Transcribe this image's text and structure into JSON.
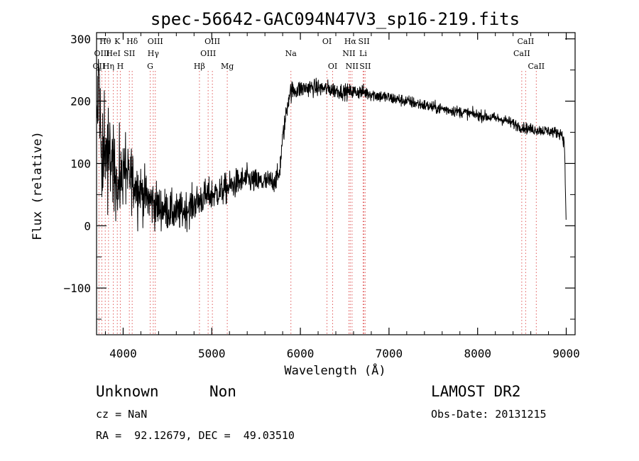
{
  "info": {
    "class_label": "Unknown",
    "subclass_label": "Non",
    "survey": "LAMOST DR2",
    "redshift": "cz = NaN",
    "obs_date": "Obs-Date: 20131215",
    "coords": "RA =  92.12679, DEC =  49.03510"
  },
  "chart_data": {
    "type": "line",
    "title": "spec-56642-GAC094N47V3_sp16-219.fits",
    "xlabel": "Wavelength (Å)",
    "ylabel": "Flux (relative)",
    "xlim": [
      3700,
      9100
    ],
    "ylim": [
      -175,
      310
    ],
    "xticks": [
      4000,
      5000,
      6000,
      7000,
      8000,
      9000
    ],
    "xtick_labels": [
      "4000",
      "5000",
      "6000",
      "7000",
      "8000",
      "9000"
    ],
    "yticks": [
      -100,
      0,
      100,
      200,
      300
    ],
    "ytick_labels": [
      "−100",
      "0",
      "100",
      "200",
      "300"
    ],
    "grid": false,
    "colors": {
      "spectrum": "#000000",
      "line_markers": "#e05a5a",
      "axes": "#000000"
    },
    "spectrum_anchors": [
      [
        3700,
        150
      ],
      [
        3730,
        245
      ],
      [
        3760,
        60
      ],
      [
        3790,
        160
      ],
      [
        3830,
        100
      ],
      [
        3880,
        110
      ],
      [
        3950,
        50
      ],
      [
        4000,
        90
      ],
      [
        4100,
        75
      ],
      [
        4200,
        55
      ],
      [
        4300,
        40
      ],
      [
        4400,
        30
      ],
      [
        4500,
        25
      ],
      [
        4600,
        20
      ],
      [
        4700,
        25
      ],
      [
        4800,
        35
      ],
      [
        4900,
        45
      ],
      [
        5000,
        50
      ],
      [
        5100,
        55
      ],
      [
        5200,
        62
      ],
      [
        5300,
        70
      ],
      [
        5400,
        75
      ],
      [
        5500,
        70
      ],
      [
        5600,
        70
      ],
      [
        5700,
        72
      ],
      [
        5760,
        80
      ],
      [
        5800,
        140
      ],
      [
        5850,
        190
      ],
      [
        5880,
        215
      ],
      [
        5950,
        218
      ],
      [
        6100,
        222
      ],
      [
        6300,
        220
      ],
      [
        6500,
        215
      ],
      [
        6700,
        215
      ],
      [
        6900,
        208
      ],
      [
        7200,
        200
      ],
      [
        7500,
        190
      ],
      [
        7800,
        183
      ],
      [
        8100,
        175
      ],
      [
        8300,
        170
      ],
      [
        8500,
        158
      ],
      [
        8600,
        155
      ],
      [
        8800,
        152
      ],
      [
        8950,
        148
      ],
      [
        8980,
        130
      ],
      [
        9000,
        0
      ]
    ],
    "spectrum_noise": [
      [
        3700,
        60
      ],
      [
        4000,
        35
      ],
      [
        4500,
        22
      ],
      [
        5000,
        18
      ],
      [
        5500,
        14
      ],
      [
        5800,
        12
      ],
      [
        6000,
        10
      ],
      [
        7000,
        7
      ],
      [
        8000,
        6
      ],
      [
        9000,
        6
      ]
    ],
    "spectral_lines": [
      {
        "name": "OII",
        "wavelength": 3727,
        "row": 2
      },
      {
        "name": "Hθ",
        "wavelength": 3798,
        "row": 0
      },
      {
        "name": "OIII",
        "wavelength": 3760,
        "row": 1
      },
      {
        "name": "Hη",
        "wavelength": 3835,
        "row": 2
      },
      {
        "name": "HeI",
        "wavelength": 3889,
        "row": 1
      },
      {
        "name": "K",
        "wavelength": 3934,
        "row": 0
      },
      {
        "name": "H",
        "wavelength": 3968,
        "row": 2
      },
      {
        "name": "SII",
        "wavelength": 4070,
        "row": 1
      },
      {
        "name": "Hδ",
        "wavelength": 4102,
        "row": 0
      },
      {
        "name": "G",
        "wavelength": 4305,
        "row": 2
      },
      {
        "name": "Hγ",
        "wavelength": 4340,
        "row": 1
      },
      {
        "name": "OIII",
        "wavelength": 4363,
        "row": 0
      },
      {
        "name": "Hβ",
        "wavelength": 4861,
        "row": 2
      },
      {
        "name": "OIII",
        "wavelength": 4959,
        "row": 1
      },
      {
        "name": "OIII",
        "wavelength": 5007,
        "row": 0
      },
      {
        "name": "Mg",
        "wavelength": 5175,
        "row": 2
      },
      {
        "name": "Na",
        "wavelength": 5893,
        "row": 1
      },
      {
        "name": "OI",
        "wavelength": 6300,
        "row": 0
      },
      {
        "name": "OI",
        "wavelength": 6364,
        "row": 2
      },
      {
        "name": "NII",
        "wavelength": 6548,
        "row": 1
      },
      {
        "name": "Hα",
        "wavelength": 6563,
        "row": 0
      },
      {
        "name": "NII",
        "wavelength": 6583,
        "row": 2
      },
      {
        "name": "SII",
        "wavelength": 6717,
        "row": 0
      },
      {
        "name": "Li",
        "wavelength": 6708,
        "row": 1
      },
      {
        "name": "SII",
        "wavelength": 6731,
        "row": 2
      },
      {
        "name": "CaII",
        "wavelength": 8498,
        "row": 1
      },
      {
        "name": "CaII",
        "wavelength": 8542,
        "row": 0
      },
      {
        "name": "CaII",
        "wavelength": 8662,
        "row": 2
      }
    ]
  }
}
